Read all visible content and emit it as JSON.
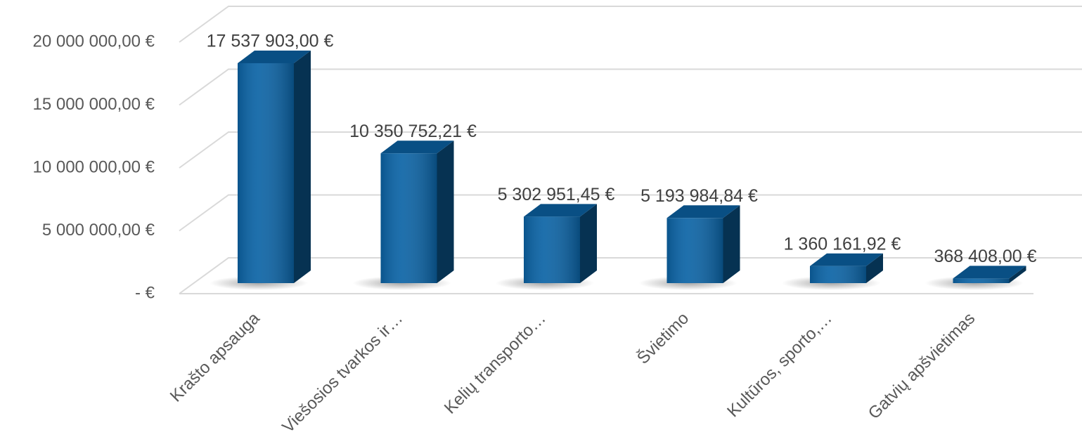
{
  "chart_data": {
    "type": "bar3d",
    "categories": [
      "Krašto apsauga",
      "Viešosios tvarkos ir…",
      "Kelių transporto…",
      "Švietimo",
      "Kultūros, sporto,…",
      "Gatvių apšvietimas"
    ],
    "values": [
      17537903.0,
      10350752.21,
      5302951.45,
      5193984.84,
      1360161.92,
      368408.0
    ],
    "value_labels": [
      "17 537 903,00 €",
      "10 350 752,21 €",
      "5 302 951,45 €",
      "5 193 984,84 €",
      "1 360 161,92 €",
      "368 408,00 €"
    ],
    "color": "#0b63a5",
    "ylim": [
      0,
      20000000
    ],
    "yticks": [
      {
        "value": 0,
        "label": "-  €"
      },
      {
        "value": 5000000,
        "label": "5 000 000,00 €"
      },
      {
        "value": 10000000,
        "label": "10 000 000,00 €"
      },
      {
        "value": 15000000,
        "label": "15 000 000,00 €"
      },
      {
        "value": 20000000,
        "label": "20 000 000,00 €"
      }
    ],
    "grid": true
  }
}
